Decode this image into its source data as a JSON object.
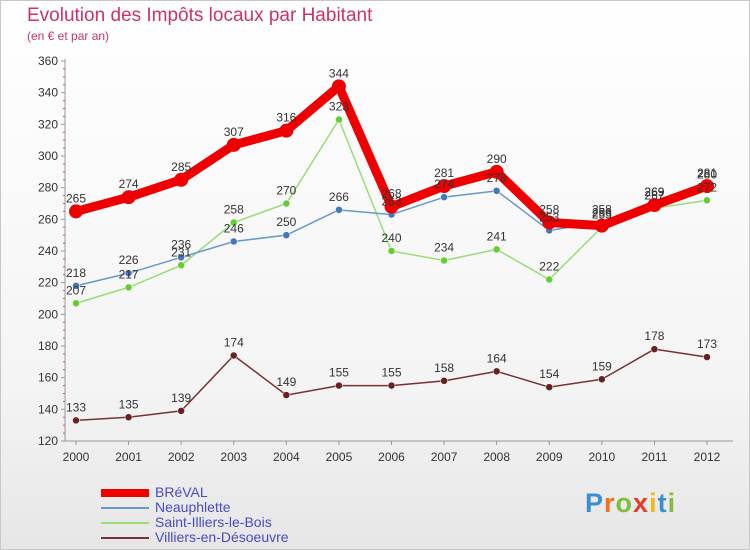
{
  "title": "Evolution des Impôts locaux par Habitant",
  "subtitle": "(en € et par an)",
  "logo": {
    "letters": [
      "P",
      "r",
      "o",
      "x",
      "i",
      "t",
      "i"
    ],
    "colors": [
      "#3a8fd0",
      "#f07020",
      "#7bbf3a",
      "#e83a2a",
      "#f2b81a",
      "#3a8fd0",
      "#7bbf3a"
    ]
  },
  "chart_data": {
    "type": "line",
    "title": "Evolution des Impôts locaux par Habitant",
    "subtitle": "(en € et par an)",
    "xlabel": "",
    "ylabel": "",
    "ylim": [
      120,
      360
    ],
    "yticks": [
      120,
      140,
      160,
      180,
      200,
      220,
      240,
      260,
      280,
      300,
      320,
      340,
      360
    ],
    "grid": false,
    "legend_position": "bottom-left",
    "x": [
      "2000",
      "2001",
      "2002",
      "2003",
      "2004",
      "2005",
      "2006",
      "2007",
      "2008",
      "2009",
      "2010",
      "2011",
      "2012"
    ],
    "series": [
      {
        "name": "BRéVAL",
        "color": "#ee0000",
        "width": 9,
        "marker": 7,
        "values": [
          265,
          274,
          285,
          307,
          316,
          344,
          268,
          281,
          290,
          258,
          256,
          269,
          281
        ]
      },
      {
        "name": "Neauphlette",
        "color": "#6699cc",
        "width": 1.5,
        "marker": 3.5,
        "markerFill": "#4477bb",
        "values": [
          218,
          226,
          236,
          246,
          250,
          266,
          263,
          274,
          278,
          253,
          258,
          269,
          280
        ]
      },
      {
        "name": "Saint-Illiers-le-Bois",
        "color": "#99dd77",
        "width": 1.5,
        "marker": 3.5,
        "markerFill": "#66cc33",
        "values": [
          207,
          217,
          231,
          258,
          270,
          323,
          240,
          234,
          241,
          222,
          255,
          267,
          272
        ]
      },
      {
        "name": "Villiers-en-Désoeuvre",
        "color": "#773333",
        "width": 1.5,
        "marker": 3.5,
        "markerFill": "#662222",
        "values": [
          133,
          135,
          139,
          174,
          149,
          155,
          155,
          158,
          164,
          154,
          159,
          178,
          173
        ]
      }
    ]
  }
}
